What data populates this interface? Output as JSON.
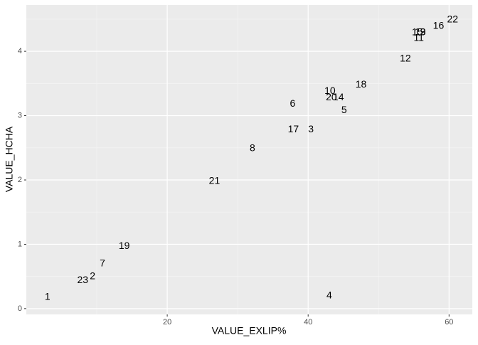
{
  "chart_data": {
    "type": "scatter",
    "x_label": "VALUE_EXLIP%",
    "y_label": "VALUE_HCHA",
    "labels": [
      "1",
      "2",
      "3",
      "4",
      "5",
      "6",
      "7",
      "8",
      "9",
      "10",
      "11",
      "12",
      "13",
      "14",
      "15",
      "16",
      "17",
      "18",
      "19",
      "20",
      "21",
      "22",
      "23"
    ],
    "x": [
      3.0,
      9.4,
      40.4,
      43.0,
      45.1,
      37.8,
      10.8,
      32.1,
      56.3,
      43.1,
      55.7,
      53.8,
      55.9,
      44.3,
      55.5,
      58.5,
      37.9,
      47.5,
      13.9,
      43.3,
      26.7,
      60.5,
      8.0
    ],
    "values": [
      0.18,
      0.5,
      2.78,
      0.2,
      3.08,
      3.18,
      0.7,
      2.49,
      4.29,
      3.38,
      4.2,
      3.88,
      4.29,
      3.28,
      4.29,
      4.39,
      2.78,
      3.48,
      0.97,
      3.28,
      1.98,
      4.49,
      0.44
    ],
    "color": "#000000",
    "xlim": [
      0,
      63.3
    ],
    "ylim": [
      -0.09,
      4.72
    ],
    "xticks": [
      20,
      40,
      60
    ],
    "yticks": [
      0,
      1,
      2,
      3,
      4
    ],
    "xminor": [
      10,
      30,
      50
    ],
    "yminor": [
      0.5,
      1.5,
      2.5,
      3.5,
      4.5
    ],
    "grid": true
  }
}
